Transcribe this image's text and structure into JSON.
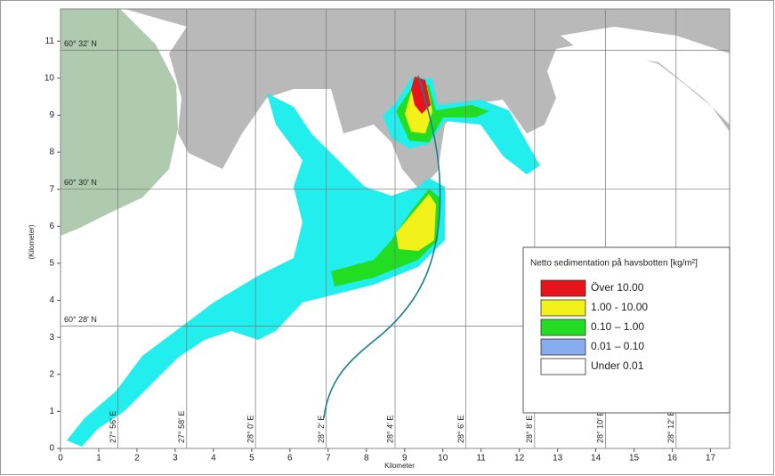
{
  "chart_data": {
    "type": "map",
    "x_label": "Kilometer",
    "y_label": "(Kilometer)",
    "xlim": [
      0,
      17.5
    ],
    "ylim": [
      0,
      11.87
    ],
    "xticks": [
      0,
      1,
      2,
      3,
      4,
      5,
      6,
      7,
      8,
      9,
      10,
      11,
      12,
      13,
      14,
      15,
      16,
      17
    ],
    "yticks": [
      0,
      1,
      2,
      3,
      4,
      5,
      6,
      7,
      8,
      9,
      10,
      11
    ],
    "latitude_lines": [
      {
        "value": 10.75,
        "label": "60° 32' N"
      },
      {
        "value": 7.0,
        "label": "60° 30' N"
      },
      {
        "value": 3.3,
        "label": "60° 28' N"
      }
    ],
    "longitude_lines": [
      {
        "value": 1.5,
        "label": "27° 56' E"
      },
      {
        "value": 3.3,
        "label": "27° 58' E"
      },
      {
        "value": 5.1,
        "label": "28° 0' E"
      },
      {
        "value": 6.95,
        "label": "28° 2' E"
      },
      {
        "value": 8.75,
        "label": "28° 4' E"
      },
      {
        "value": 10.6,
        "label": "28° 6' E"
      },
      {
        "value": 12.4,
        "label": "28° 8' E"
      },
      {
        "value": 14.25,
        "label": "28° 10' E"
      },
      {
        "value": 16.1,
        "label": "28° 12' E"
      }
    ],
    "legend": {
      "title": "Netto sedimentation på havsbotten [kg/m²]",
      "items": [
        {
          "label": "Över 10.00",
          "color": "#e8141c"
        },
        {
          "label": "1.00 - 10.00",
          "color": "#f2f21a"
        },
        {
          "label": "0.10 – 1.00",
          "color": "#22dd22"
        },
        {
          "label": "0.01 – 0.10",
          "color": "#88aaee"
        },
        {
          "label": "Under 0.01",
          "color": "#ffffff"
        }
      ]
    }
  }
}
